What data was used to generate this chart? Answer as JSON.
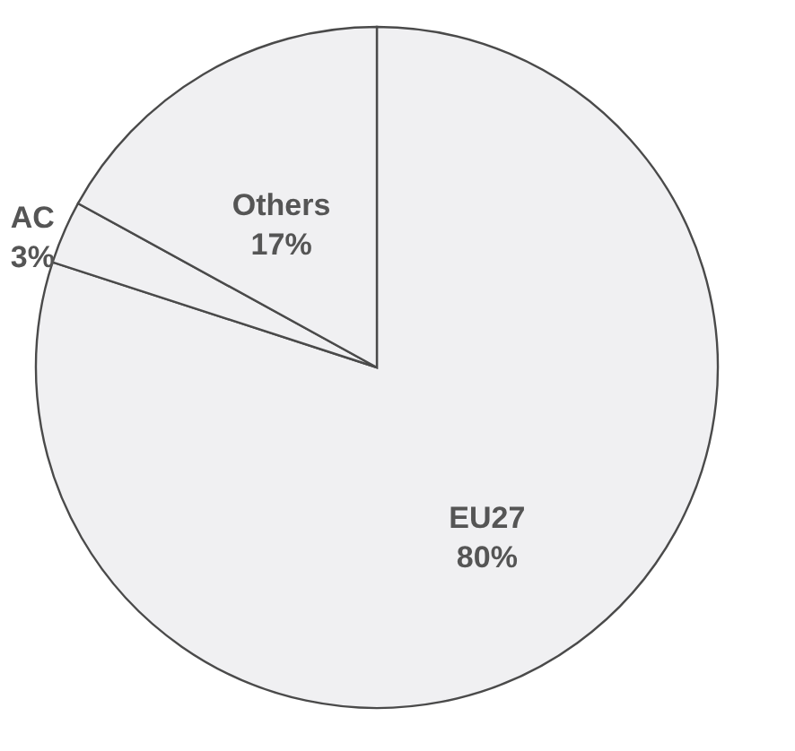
{
  "chart_data": {
    "type": "pie",
    "categories": [
      "EU27",
      "AC",
      "Others"
    ],
    "values": [
      80,
      3,
      17
    ],
    "value_labels": [
      "80%",
      "3%",
      "17%"
    ],
    "colors": [
      "#f0f0f2",
      "#f0f0f2",
      "#f0f0f2"
    ]
  }
}
